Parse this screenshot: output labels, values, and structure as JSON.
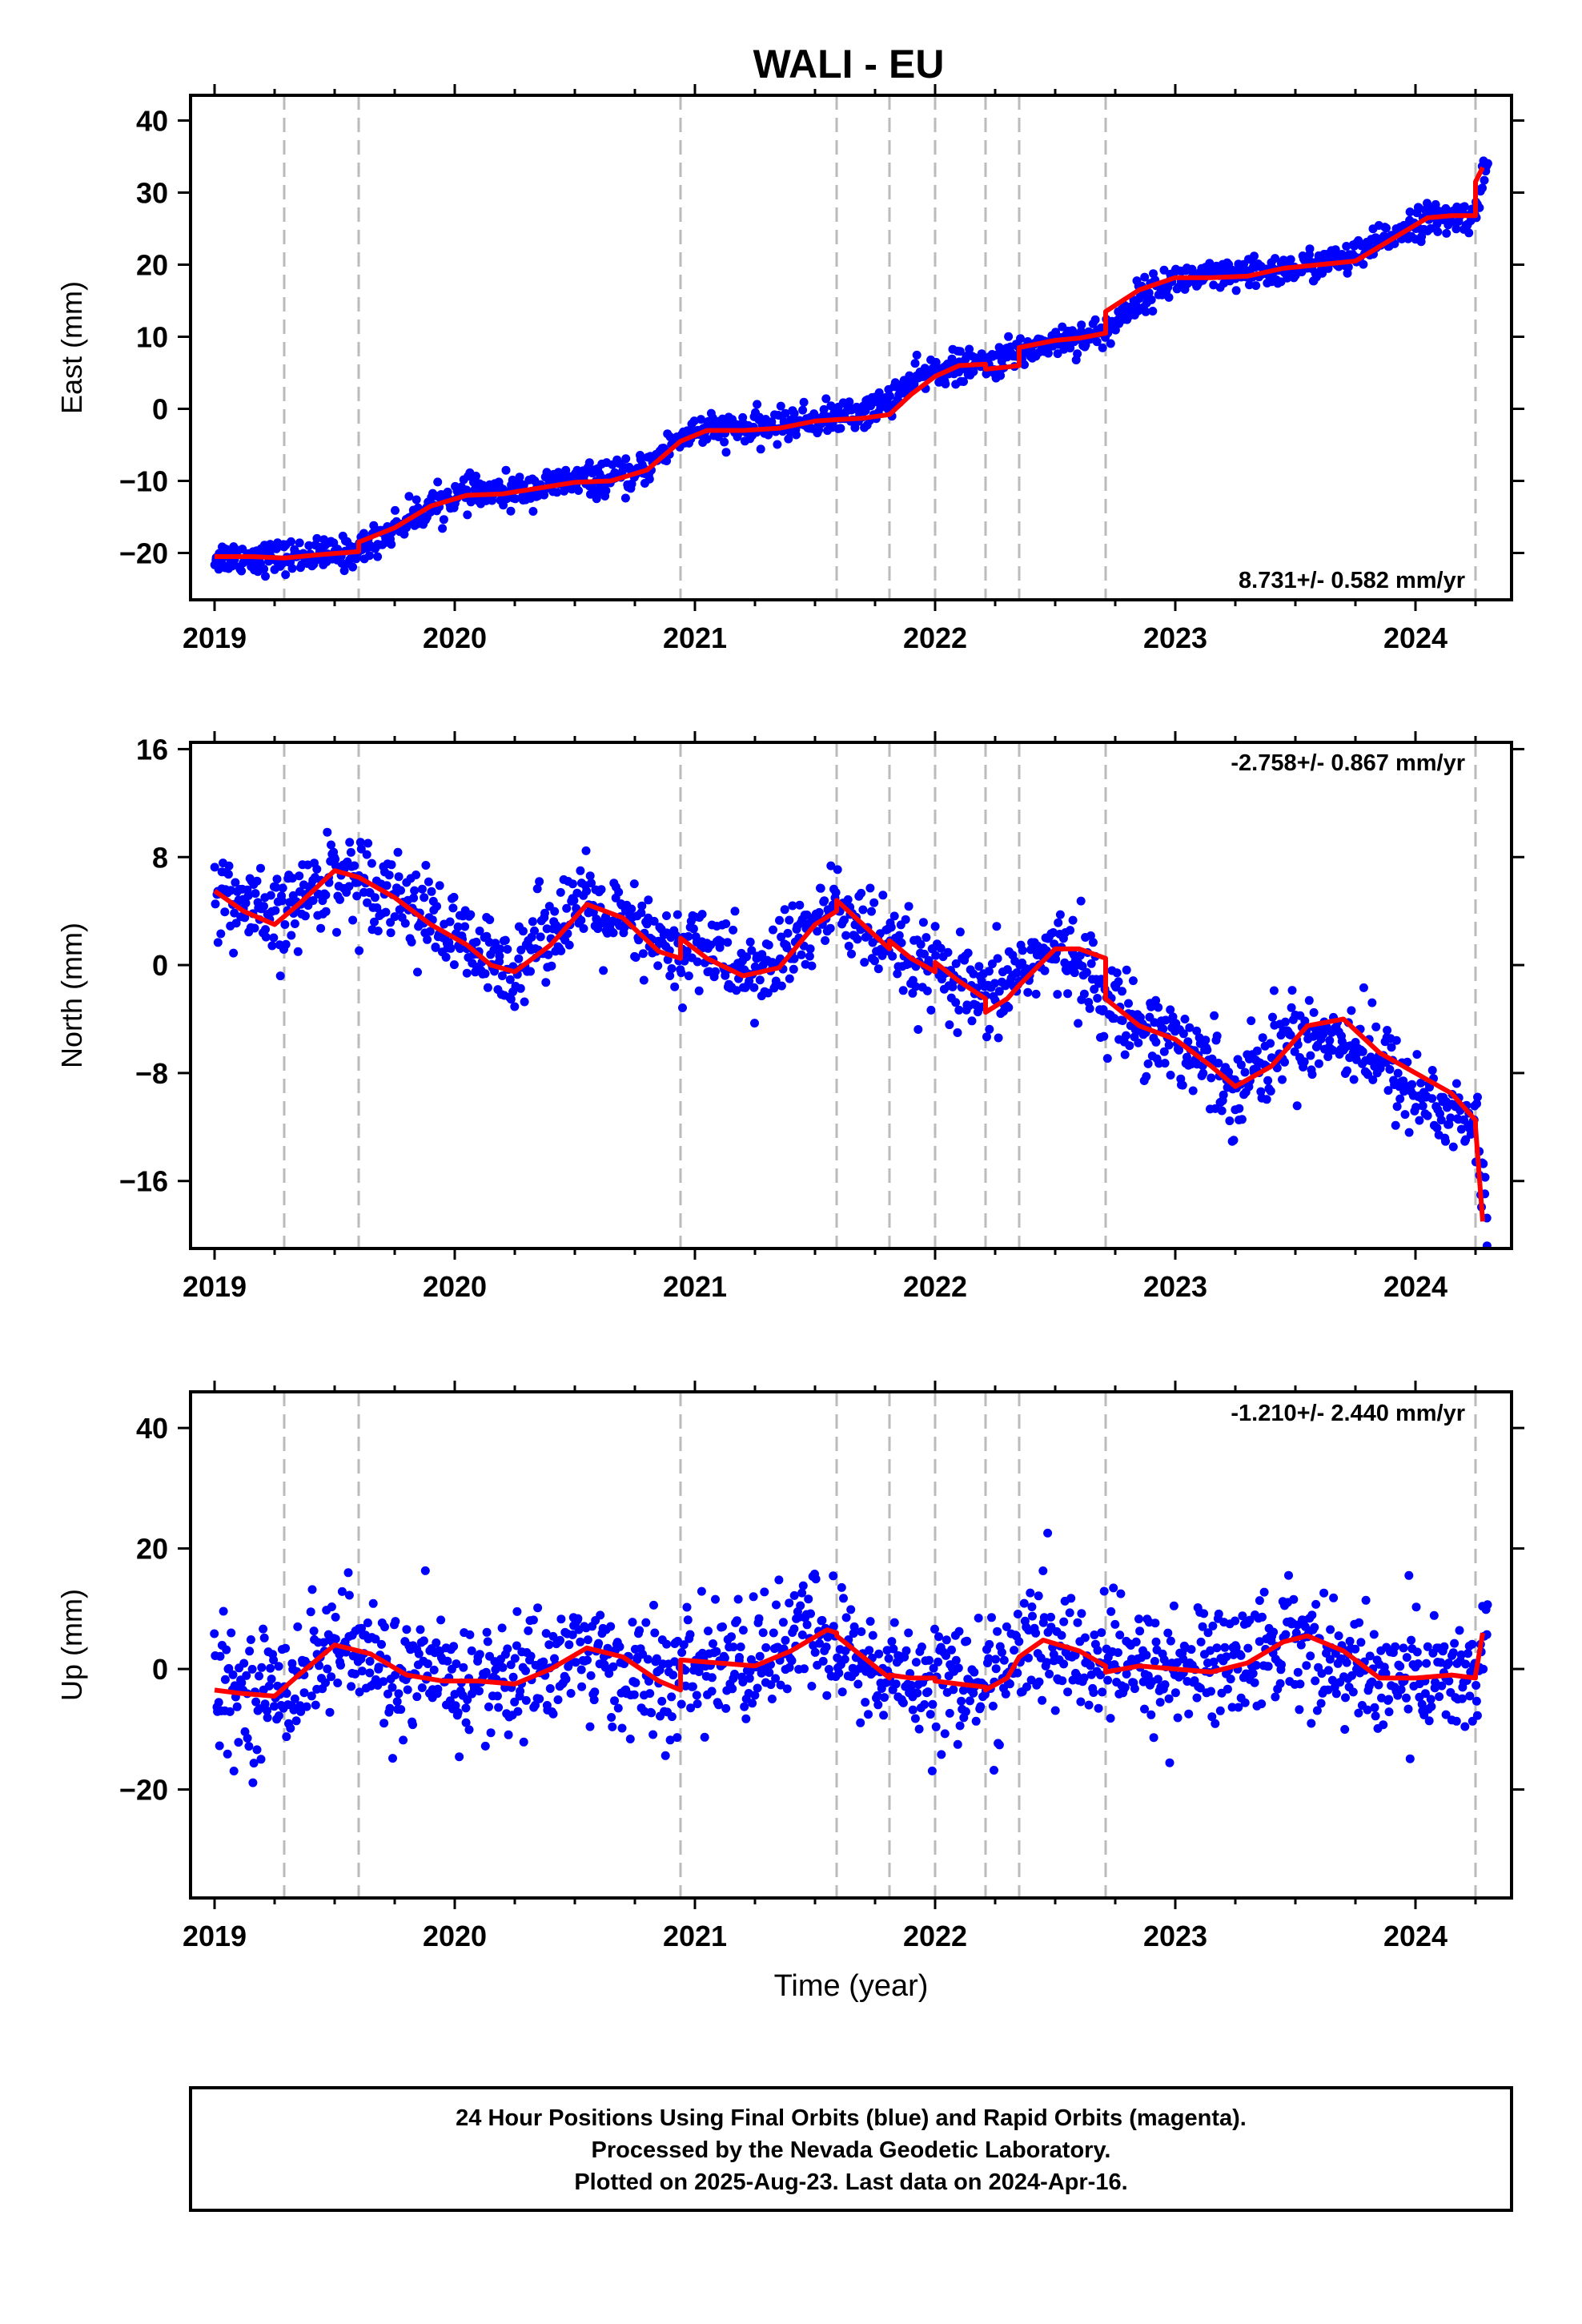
{
  "chart_data": [
    {
      "type": "scatter",
      "title": "WALI - EU",
      "ylabel": "East (mm)",
      "rate_label": "8.731+/- 0.582 mm/yr",
      "xlim": [
        2018.9,
        2024.4
      ],
      "ylim": [
        -26.5,
        43.5
      ],
      "x_ticks": [
        2019,
        2020,
        2021,
        2022,
        2023,
        2024
      ],
      "x_tick_labels": [
        "2019",
        "2020",
        "2021",
        "2022",
        "2023",
        "2024"
      ],
      "y_ticks": [
        -20,
        -10,
        0,
        10,
        20,
        30,
        40
      ],
      "y_tick_labels": [
        "−20",
        "−10",
        "0",
        "10",
        "20",
        "30",
        "40"
      ],
      "event_lines": [
        2019.29,
        2019.6,
        2020.94,
        2021.59,
        2021.81,
        2022.0,
        2022.21,
        2022.35,
        2022.71,
        2024.25
      ],
      "colors": {
        "points": "#0000ff",
        "model": "#ff0000",
        "event_lines": "#bbbbbb"
      },
      "series": [
        {
          "name": "Final Orbits",
          "sampled_x": [
            2019.0,
            2019.25,
            2019.5,
            2019.59,
            2019.75,
            2019.9,
            2020.0,
            2020.25,
            2020.5,
            2020.75,
            2020.94,
            2021.0,
            2021.25,
            2021.5,
            2021.59,
            2021.75,
            2021.9,
            2022.0,
            2022.21,
            2022.35,
            2022.5,
            2022.71,
            2022.85,
            2023.0,
            2023.25,
            2023.5,
            2023.75,
            2024.0,
            2024.24,
            2024.3
          ],
          "sampled_y": [
            -20.5,
            -20.6,
            -20.2,
            -19.8,
            -16.5,
            -13.5,
            -12.0,
            -11.5,
            -10.0,
            -9.5,
            -4.0,
            -3.0,
            -2.8,
            -1.5,
            -1.2,
            0.0,
            3.5,
            5.5,
            6.0,
            7.8,
            9.5,
            10.5,
            15.5,
            18.0,
            18.4,
            19.5,
            21.0,
            26.0,
            26.8,
            34.0
          ]
        }
      ],
      "model": {
        "name": "Model",
        "x": [
          2019.0,
          2019.15,
          2019.29,
          2019.45,
          2019.6,
          2019.6,
          2019.75,
          2019.9,
          2020.05,
          2020.2,
          2020.35,
          2020.5,
          2020.65,
          2020.8,
          2020.94,
          2021.05,
          2021.2,
          2021.35,
          2021.5,
          2021.59,
          2021.7,
          2021.81,
          2021.9,
          2022.0,
          2022.1,
          2022.21,
          2022.21,
          2022.3,
          2022.35,
          2022.35,
          2022.5,
          2022.6,
          2022.71,
          2022.71,
          2022.85,
          2023.0,
          2023.15,
          2023.3,
          2023.45,
          2023.6,
          2023.75,
          2023.9,
          2024.05,
          2024.15,
          2024.25,
          2024.25,
          2024.28
        ],
        "y": [
          -20.5,
          -20.5,
          -20.7,
          -20.2,
          -19.8,
          -18.5,
          -16.5,
          -13.5,
          -12.0,
          -11.8,
          -11.0,
          -10.2,
          -10.0,
          -8.5,
          -4.5,
          -3.0,
          -3.0,
          -2.7,
          -1.7,
          -1.5,
          -1.3,
          -0.8,
          2.0,
          4.5,
          6.0,
          6.2,
          5.5,
          5.8,
          6.0,
          8.5,
          9.5,
          9.8,
          10.5,
          13.5,
          16.5,
          18.2,
          18.2,
          18.4,
          19.5,
          20.0,
          20.5,
          23.5,
          26.5,
          26.8,
          26.8,
          31.5,
          33.5
        ]
      }
    },
    {
      "type": "scatter",
      "ylabel": "North (mm)",
      "rate_label": "-2.758+/- 0.867 mm/yr",
      "xlim": [
        2018.9,
        2024.4
      ],
      "ylim": [
        -21,
        16.5
      ],
      "x_ticks": [
        2019,
        2020,
        2021,
        2022,
        2023,
        2024
      ],
      "x_tick_labels": [
        "2019",
        "2020",
        "2021",
        "2022",
        "2023",
        "2024"
      ],
      "y_ticks": [
        -16,
        -8,
        0,
        8,
        16
      ],
      "y_tick_labels": [
        "−16",
        "−8",
        "0",
        "8",
        "16"
      ],
      "event_lines": [
        2019.29,
        2019.6,
        2020.94,
        2021.59,
        2021.81,
        2022.0,
        2022.21,
        2022.35,
        2022.71,
        2024.25
      ],
      "colors": {
        "points": "#0000ff",
        "model": "#ff0000",
        "event_lines": "#bbbbbb"
      },
      "series": [
        {
          "name": "Final Orbits",
          "sampled_x": [
            2019.0,
            2019.25,
            2019.5,
            2019.75,
            2020.0,
            2020.2,
            2020.5,
            2020.75,
            2020.94,
            2021.0,
            2021.25,
            2021.5,
            2021.6,
            2021.8,
            2022.0,
            2022.21,
            2022.4,
            2022.6,
            2022.71,
            2023.0,
            2023.25,
            2023.5,
            2023.75,
            2024.0,
            2024.25,
            2024.3
          ],
          "sampled_y": [
            5.5,
            3.0,
            7.0,
            5.5,
            2.0,
            -0.5,
            4.5,
            2.5,
            0.5,
            2.0,
            -1.0,
            3.0,
            4.5,
            1.0,
            -0.5,
            -3.0,
            0.5,
            1.0,
            -3.0,
            -5.5,
            -9.0,
            -5.0,
            -5.5,
            -9.5,
            -12.0,
            -19.0
          ]
        }
      ],
      "model": {
        "name": "Model",
        "x": [
          2019.0,
          2019.12,
          2019.25,
          2019.35,
          2019.5,
          2019.6,
          2019.75,
          2019.9,
          2020.05,
          2020.15,
          2020.25,
          2020.4,
          2020.55,
          2020.7,
          2020.85,
          2020.94,
          2020.94,
          2021.05,
          2021.2,
          2021.35,
          2021.5,
          2021.59,
          2021.59,
          2021.7,
          2021.81,
          2021.81,
          2021.9,
          2022.0,
          2022.0,
          2022.1,
          2022.21,
          2022.21,
          2022.3,
          2022.35,
          2022.5,
          2022.6,
          2022.71,
          2022.71,
          2022.85,
          2023.0,
          2023.15,
          2023.25,
          2023.4,
          2023.55,
          2023.7,
          2023.85,
          2024.0,
          2024.15,
          2024.25,
          2024.25,
          2024.28
        ],
        "y": [
          5.5,
          4.0,
          3.0,
          4.5,
          7.0,
          6.5,
          5.0,
          3.0,
          1.5,
          0.0,
          -0.5,
          1.5,
          4.5,
          3.5,
          1.0,
          0.5,
          2.0,
          0.5,
          -0.8,
          -0.2,
          3.0,
          4.0,
          4.8,
          3.0,
          1.2,
          1.8,
          0.5,
          -0.5,
          0.2,
          -1.2,
          -2.5,
          -3.5,
          -2.5,
          -1.5,
          1.2,
          1.2,
          0.5,
          -2.5,
          -4.5,
          -5.5,
          -7.5,
          -9.0,
          -7.5,
          -4.5,
          -4.0,
          -6.5,
          -8.0,
          -9.5,
          -11.5,
          -12.0,
          -19.0
        ]
      }
    },
    {
      "type": "scatter",
      "ylabel": "Up (mm)",
      "xlabel": "Time (year)",
      "rate_label": "-1.210+/- 2.440 mm/yr",
      "xlim": [
        2018.9,
        2024.4
      ],
      "ylim": [
        -38,
        46
      ],
      "x_ticks": [
        2019,
        2020,
        2021,
        2022,
        2023,
        2024
      ],
      "x_tick_labels": [
        "2019",
        "2020",
        "2021",
        "2022",
        "2023",
        "2024"
      ],
      "y_ticks": [
        -20,
        0,
        20,
        40
      ],
      "y_tick_labels": [
        "−20",
        "0",
        "20",
        "40"
      ],
      "event_lines": [
        2019.29,
        2019.6,
        2020.94,
        2021.59,
        2021.81,
        2022.0,
        2022.21,
        2022.35,
        2022.71,
        2024.25
      ],
      "colors": {
        "points": "#0000ff",
        "model": "#ff0000",
        "event_lines": "#bbbbbb"
      },
      "series": [
        {
          "name": "Final Orbits",
          "sampled_x": [
            2019.0,
            2019.25,
            2019.5,
            2019.75,
            2020.0,
            2020.25,
            2020.5,
            2020.75,
            2020.94,
            2021.0,
            2021.25,
            2021.5,
            2021.75,
            2022.0,
            2022.21,
            2022.4,
            2022.6,
            2022.75,
            2023.0,
            2023.25,
            2023.5,
            2023.75,
            2024.0,
            2024.25,
            2024.3
          ],
          "sampled_y": [
            -3.5,
            -4.0,
            4.0,
            -1.0,
            -2.0,
            -2.0,
            3.0,
            -1.0,
            -3.0,
            1.0,
            1.0,
            6.5,
            -1.0,
            -1.5,
            -3.0,
            4.5,
            2.0,
            0.5,
            0.0,
            1.5,
            5.5,
            -1.0,
            -1.0,
            -1.5,
            6.0
          ]
        }
      ],
      "model": {
        "name": "Model",
        "x": [
          2019.0,
          2019.1,
          2019.25,
          2019.35,
          2019.5,
          2019.65,
          2019.8,
          2019.95,
          2020.1,
          2020.25,
          2020.4,
          2020.55,
          2020.7,
          2020.85,
          2020.94,
          2020.94,
          2021.1,
          2021.25,
          2021.4,
          2021.55,
          2021.59,
          2021.59,
          2021.7,
          2021.81,
          2021.81,
          2021.9,
          2022.0,
          2022.0,
          2022.1,
          2022.21,
          2022.21,
          2022.3,
          2022.35,
          2022.45,
          2022.6,
          2022.71,
          2022.71,
          2022.85,
          2023.0,
          2023.15,
          2023.3,
          2023.45,
          2023.55,
          2023.7,
          2023.85,
          2024.0,
          2024.15,
          2024.25,
          2024.25,
          2024.28
        ],
        "y": [
          -3.5,
          -4.0,
          -4.5,
          -1.0,
          4.0,
          2.5,
          -1.0,
          -2.0,
          -2.0,
          -2.5,
          0.0,
          3.5,
          2.0,
          -2.0,
          -3.5,
          1.5,
          1.0,
          0.5,
          3.0,
          6.5,
          6.0,
          5.5,
          2.0,
          -1.5,
          -1.0,
          -1.5,
          -1.5,
          -2.0,
          -2.5,
          -3.0,
          -3.5,
          -1.5,
          2.0,
          4.8,
          3.0,
          0.5,
          -0.5,
          0.5,
          0.0,
          -0.5,
          1.0,
          4.5,
          5.5,
          3.0,
          -1.5,
          -1.5,
          -1.0,
          -1.5,
          -1.0,
          6.0
        ]
      }
    }
  ],
  "footer": {
    "line1": "24 Hour Positions Using Final Orbits (blue) and Rapid Orbits (magenta).",
    "line2": "Processed by the Nevada Geodetic Laboratory.",
    "line3": "Plotted on 2025-Aug-23. Last data on 2024-Apr-16."
  }
}
